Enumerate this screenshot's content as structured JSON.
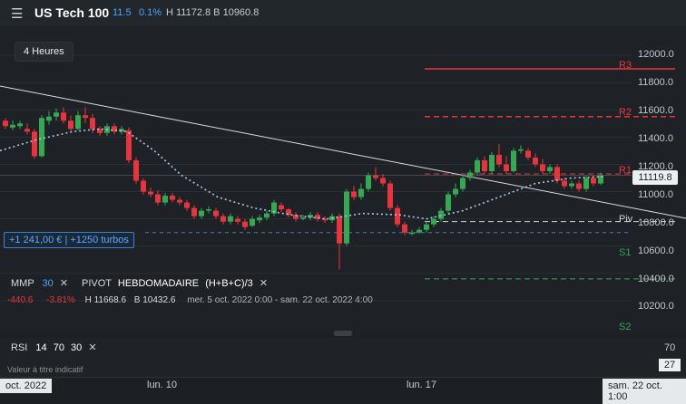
{
  "header": {
    "menu_icon": "hamburger-menu-icon",
    "title": "US Tech 100",
    "change": "11.5",
    "change_pct": "0.1%",
    "high_low": "H 11172.8  B 10960.8",
    "accent": "#4aa3ff"
  },
  "chart": {
    "timeframe": "4 Heures",
    "last_price": "11119.8",
    "position_label": "+1 241,00 € | +1250 turbos",
    "y_ticks": [
      "12000.0",
      "11800.0",
      "11600.0",
      "11400.0",
      "11200.0",
      "11000.0",
      "10800.0",
      "10600.0",
      "10400.0",
      "10200.0"
    ],
    "pivot_labels": {
      "r3": "R3",
      "r2": "R2",
      "r1": "R1",
      "piv": "Piv",
      "s1": "S1",
      "s2": "S2"
    },
    "colors": {
      "up": "#34a853",
      "down": "#e8353d",
      "resistance": "#e8353d",
      "support": "#34a853",
      "pivot": "#d0d4d8",
      "ma": "#a8c8e8"
    }
  },
  "indicators": {
    "mmp_label": "MMP",
    "mmp_value": "30",
    "pivot_label": "PIVOT",
    "pivot_type": "HEBDOMADAIRE",
    "pivot_formula": "(H+B+C)/3",
    "close_icon": "close-icon",
    "change_abs": "-440.6",
    "change_pct": "-3.81%",
    "high": "H 11668.6",
    "low": "B 10432.6",
    "range": "mer. 5 oct. 2022 0:00 - sam. 22 oct. 2022 4:00"
  },
  "rsi": {
    "label": "RSI",
    "p1": "14",
    "p2": "70",
    "p3": "30",
    "upper": "70",
    "current": "27",
    "note": "Valeur à titre indicatif"
  },
  "xaxis": {
    "labels": [
      "oct. 2022",
      "lun. 10",
      "lun. 17"
    ],
    "cursor_date": "sam. 22 oct. 1:00"
  }
}
